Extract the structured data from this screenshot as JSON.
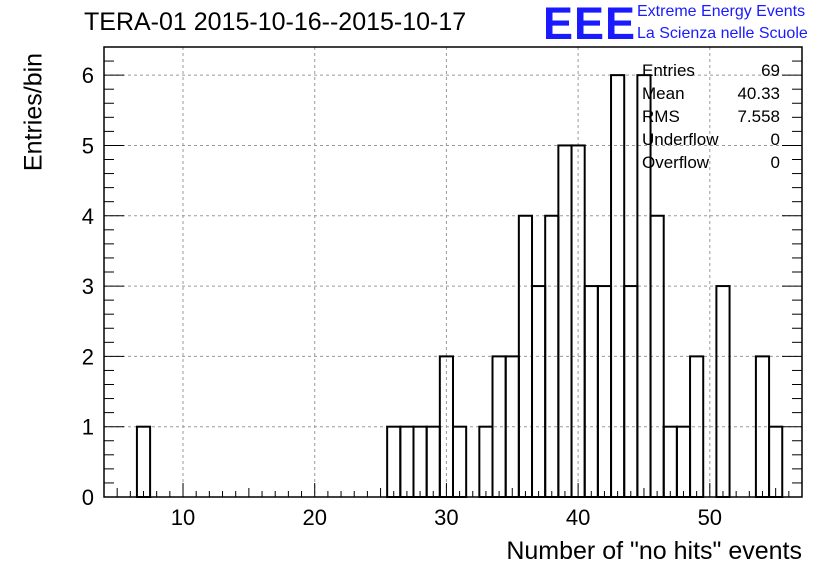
{
  "chart_data": {
    "type": "bar",
    "title": "TERA-01 2015-10-16--2015-10-17",
    "xlabel": "Number of \"no hits\" events",
    "ylabel": "Entries/bin",
    "xlim": [
      4,
      57
    ],
    "ylim": [
      0,
      6.4
    ],
    "x_ticks": [
      "10",
      "20",
      "30",
      "40",
      "50"
    ],
    "x_tick_values": [
      10,
      20,
      30,
      40,
      50
    ],
    "y_ticks": [
      "0",
      "1",
      "2",
      "3",
      "4",
      "5",
      "6"
    ],
    "y_tick_values": [
      0,
      1,
      2,
      3,
      4,
      5,
      6
    ],
    "grid": true,
    "bin_width": 1,
    "bins": [
      {
        "x": 7,
        "value": 1
      },
      {
        "x": 26,
        "value": 1
      },
      {
        "x": 27,
        "value": 1
      },
      {
        "x": 28,
        "value": 1
      },
      {
        "x": 29,
        "value": 1
      },
      {
        "x": 30,
        "value": 2
      },
      {
        "x": 31,
        "value": 1
      },
      {
        "x": 33,
        "value": 1
      },
      {
        "x": 34,
        "value": 2
      },
      {
        "x": 35,
        "value": 2
      },
      {
        "x": 36,
        "value": 4
      },
      {
        "x": 37,
        "value": 3
      },
      {
        "x": 38,
        "value": 4
      },
      {
        "x": 39,
        "value": 5
      },
      {
        "x": 40,
        "value": 5
      },
      {
        "x": 41,
        "value": 3
      },
      {
        "x": 42,
        "value": 3
      },
      {
        "x": 43,
        "value": 6
      },
      {
        "x": 44,
        "value": 3
      },
      {
        "x": 45,
        "value": 6
      },
      {
        "x": 46,
        "value": 4
      },
      {
        "x": 47,
        "value": 1
      },
      {
        "x": 48,
        "value": 1
      },
      {
        "x": 49,
        "value": 2
      },
      {
        "x": 51,
        "value": 3
      },
      {
        "x": 54,
        "value": 2
      },
      {
        "x": 55,
        "value": 1
      }
    ],
    "stats": [
      {
        "label": "Entries",
        "value": "69"
      },
      {
        "label": "Mean",
        "value": "40.33"
      },
      {
        "label": "RMS",
        "value": "7.558"
      },
      {
        "label": "Underflow",
        "value": "0"
      },
      {
        "label": "Overflow",
        "value": "0"
      }
    ]
  },
  "logo": {
    "mark": "EEE",
    "line1": "Extreme Energy Events",
    "line2": "La Scienza nelle Scuole",
    "color": "#1a1aff"
  }
}
